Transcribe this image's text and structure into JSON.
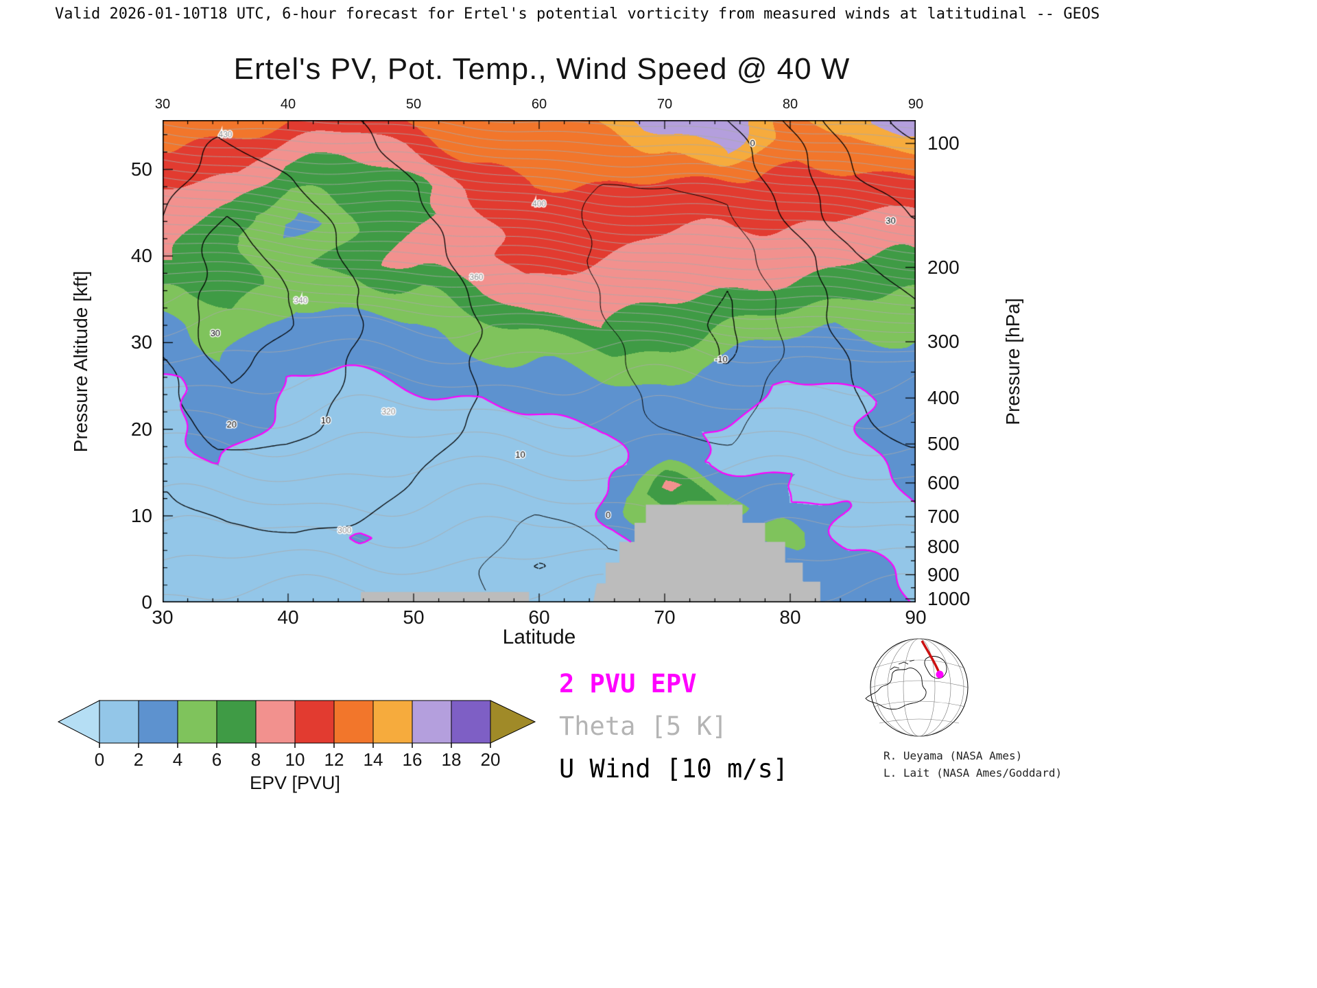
{
  "header": {
    "validity_line": "Valid 2026-01-10T18 UTC, 6-hour forecast for Ertel's potential vorticity from measured winds at latitudinal -- GEOS"
  },
  "title": "Ertel's PV, Pot. Temp., Wind Speed @ 40 W",
  "axes": {
    "x": {
      "label": "Latitude",
      "ticks": [
        30,
        40,
        50,
        60,
        70,
        80,
        90
      ],
      "range": [
        30,
        90
      ],
      "minor_step": 2
    },
    "y_left": {
      "label": "Pressure Altitude [kft]",
      "ticks": [
        0,
        10,
        20,
        30,
        40,
        50
      ],
      "range": [
        0,
        55.7
      ],
      "minor_step": 2
    },
    "y_right": {
      "label": "Pressure [hPa]",
      "ticks": [
        100,
        200,
        300,
        400,
        500,
        600,
        700,
        800,
        900,
        1000
      ],
      "tick_alt_kft": [
        53.0,
        38.7,
        30.1,
        23.6,
        18.3,
        13.8,
        9.9,
        6.4,
        3.2,
        0.4
      ],
      "minor_tick_alt_kft": [
        44.6,
        34.0,
        26.6,
        20.8,
        15.9,
        11.7,
        8.1,
        4.8,
        1.7
      ]
    }
  },
  "legend": {
    "items": [
      {
        "text": "2 PVU EPV",
        "color": "#ff00ff",
        "bold": true
      },
      {
        "text": "Theta [5 K]",
        "color": "#b4b4b4",
        "bold": false
      },
      {
        "text": "U Wind [10 m/s]",
        "color": "#000000",
        "bold": false
      }
    ]
  },
  "colorbar": {
    "label": "EPV [PVU]",
    "levels": [
      0,
      2,
      4,
      6,
      8,
      10,
      12,
      14,
      16,
      18,
      20
    ],
    "under_color": "#b5def4",
    "segment_colors": [
      "#93c6e8",
      "#5d92cf",
      "#7fc35c",
      "#3f9b45",
      "#f2918e",
      "#e23b30",
      "#f2762b",
      "#f6ab3d",
      "#b49fdd",
      "#7e5fc5"
    ],
    "over_color": "#a08a28"
  },
  "credits": {
    "lines": [
      "R. Ueyama (NASA Ames)",
      "L. Lait (NASA Ames/Goddard)"
    ]
  },
  "chart_data": {
    "type": "heatmap",
    "title": "Ertel's PV, Pot. Temp., Wind Speed @ 40 W",
    "x_label": "Latitude",
    "y_label": "Pressure Altitude [kft]",
    "value_label": "EPV [PVU]",
    "lat_range": [
      30,
      90
    ],
    "alt_range": [
      0,
      55.7
    ],
    "lat_points": [
      30,
      35,
      40,
      45,
      50,
      55,
      60,
      65,
      70,
      75,
      80,
      85,
      90
    ],
    "alt_points": [
      0,
      4,
      8,
      12,
      16,
      20,
      24,
      28,
      32,
      36,
      40,
      44,
      48,
      52,
      56
    ],
    "epv_grid": [
      [
        0.6,
        0.7,
        0.5,
        0.6,
        0.8,
        0.7,
        0.6,
        0.8,
        1.0,
        1.0,
        1.2,
        3.5,
        1.4
      ],
      [
        0.8,
        0.9,
        0.6,
        0.7,
        0.9,
        0.8,
        0.7,
        1.0,
        1.2,
        1.2,
        3.0,
        2.8,
        1.6
      ],
      [
        1.0,
        1.2,
        0.8,
        2.3,
        1.0,
        0.9,
        0.8,
        1.2,
        3.5,
        2.0,
        6.0,
        1.6,
        1.9
      ],
      [
        1.1,
        1.6,
        1.0,
        1.0,
        1.2,
        1.0,
        1.0,
        1.5,
        9.0,
        5.0,
        2.0,
        1.8,
        2.1
      ],
      [
        1.3,
        2.2,
        1.2,
        1.2,
        1.4,
        1.2,
        1.2,
        1.8,
        2.5,
        1.7,
        2.0,
        1.6,
        2.4
      ],
      [
        1.5,
        2.6,
        1.5,
        1.5,
        1.6,
        1.5,
        1.6,
        2.0,
        2.2,
        1.9,
        1.6,
        1.7,
        2.7
      ],
      [
        1.7,
        3.0,
        1.8,
        1.8,
        1.9,
        2.0,
        2.5,
        3.0,
        3.2,
        2.8,
        1.8,
        1.8,
        3.0
      ],
      [
        2.6,
        3.5,
        2.2,
        2.2,
        2.4,
        3.2,
        4.5,
        5.5,
        5.0,
        3.5,
        2.6,
        2.4,
        3.4
      ],
      [
        3.2,
        5.0,
        3.0,
        3.0,
        3.5,
        5.5,
        7.5,
        8.0,
        7.0,
        6.0,
        5.0,
        4.0,
        4.5
      ],
      [
        5.5,
        7.0,
        5.0,
        5.5,
        6.0,
        8.0,
        9.5,
        9.0,
        8.5,
        8.0,
        7.5,
        6.5,
        6.0
      ],
      [
        8.0,
        6.5,
        5.5,
        6.5,
        9.5,
        9.5,
        10.5,
        10.0,
        9.5,
        9.0,
        9.0,
        8.5,
        8.0
      ],
      [
        9.0,
        7.5,
        3.0,
        6.0,
        7.0,
        10.0,
        11.0,
        11.0,
        10.5,
        10.0,
        10.0,
        10.0,
        9.5
      ],
      [
        10.0,
        9.0,
        6.0,
        6.5,
        7.5,
        11.0,
        12.0,
        12.0,
        11.5,
        11.0,
        11.5,
        11.0,
        11.0
      ],
      [
        12.0,
        11.0,
        9.0,
        8.5,
        9.5,
        12.0,
        12.5,
        13.0,
        13.0,
        16.0,
        12.5,
        13.0,
        13.5
      ],
      [
        14.0,
        13.0,
        12.5,
        12.0,
        12.5,
        13.5,
        14.0,
        14.5,
        17.0,
        18.0,
        14.0,
        14.5,
        17.0
      ]
    ],
    "u_wind_grid": [
      [
        2,
        3,
        4,
        4,
        3,
        1,
        -3,
        -1,
        0,
        1,
        2,
        3,
        4
      ],
      [
        4,
        6,
        7,
        6,
        5,
        2,
        -11,
        -1,
        0,
        2,
        3,
        4,
        5
      ],
      [
        6,
        9,
        10,
        9,
        7,
        4,
        -4,
        1,
        1,
        3,
        4,
        5,
        6
      ],
      [
        9,
        14,
        14,
        12,
        9,
        6,
        2,
        2,
        2,
        4,
        5,
        6,
        7
      ],
      [
        12,
        18,
        18,
        15,
        11,
        8,
        4,
        3,
        2,
        3,
        6,
        8,
        9
      ],
      [
        15,
        24,
        22,
        17,
        13,
        9,
        5,
        3,
        0,
        -2,
        5,
        9,
        11
      ],
      [
        18,
        28,
        25,
        19,
        14,
        10,
        6,
        3,
        -2,
        -6,
        4,
        10,
        13
      ],
      [
        20,
        32,
        28,
        20,
        15,
        10,
        6,
        2,
        -4,
        -11,
        3,
        11,
        15
      ],
      [
        22,
        35,
        30,
        21,
        15,
        10,
        5,
        1,
        -5,
        -12,
        2,
        13,
        18
      ],
      [
        23,
        36,
        30,
        21,
        14,
        9,
        4,
        0,
        -5,
        -10,
        3,
        16,
        22
      ],
      [
        22,
        34,
        28,
        19,
        13,
        8,
        3,
        -1,
        -4,
        -5,
        6,
        20,
        26
      ],
      [
        20,
        30,
        25,
        17,
        11,
        7,
        2,
        -1,
        -2,
        -2,
        10,
        25,
        30
      ],
      [
        18,
        26,
        21,
        14,
        10,
        6,
        2,
        0,
        0,
        2,
        14,
        29,
        34
      ],
      [
        16,
        22,
        18,
        12,
        8,
        5,
        1,
        0,
        2,
        6,
        18,
        32,
        38
      ],
      [
        14,
        18,
        15,
        10,
        7,
        4,
        1,
        1,
        4,
        10,
        22,
        35,
        42
      ]
    ],
    "u_wind_contour_interval_ms": 10,
    "theta_contour_interval_K": 5,
    "epv_highlight_contour_pvu": 2,
    "mask_color": "#bcbcbc",
    "mask_polygons": [
      [
        [
          64.3,
          0
        ],
        [
          64.6,
          2.2
        ],
        [
          65.3,
          2.2
        ],
        [
          65.3,
          4.6
        ],
        [
          66.4,
          4.6
        ],
        [
          66.4,
          7.0
        ],
        [
          67.6,
          7.0
        ],
        [
          67.6,
          9.2
        ],
        [
          68.5,
          9.2
        ],
        [
          68.5,
          11.3
        ],
        [
          76.2,
          11.3
        ],
        [
          76.2,
          9.2
        ],
        [
          78.0,
          9.2
        ],
        [
          78.0,
          7.0
        ],
        [
          79.6,
          7.0
        ],
        [
          79.6,
          4.6
        ],
        [
          81.0,
          4.6
        ],
        [
          81.0,
          2.4
        ],
        [
          82.4,
          2.4
        ],
        [
          82.4,
          0
        ]
      ],
      [
        [
          45.8,
          0
        ],
        [
          45.8,
          1.2
        ],
        [
          59.2,
          1.2
        ],
        [
          59.2,
          0
        ]
      ]
    ],
    "u_wind_labels": [
      {
        "text": "30",
        "lat": 34.2,
        "alt": 31
      },
      {
        "text": "20",
        "lat": 35.5,
        "alt": 20.5
      },
      {
        "text": "10",
        "lat": 43,
        "alt": 21
      },
      {
        "text": "10",
        "lat": 58.5,
        "alt": 17
      },
      {
        "text": "30",
        "lat": 88,
        "alt": 44
      },
      {
        "text": "0",
        "lat": 77,
        "alt": 53
      },
      {
        "text": "-10",
        "lat": 74.5,
        "alt": 28
      },
      {
        "text": "0",
        "lat": 65.5,
        "alt": 10
      }
    ],
    "theta_labels": [
      {
        "text": "300",
        "lat": 44.5,
        "alt": 8.3
      },
      {
        "text": "320",
        "lat": 48,
        "alt": 22
      },
      {
        "text": "340",
        "lat": 41,
        "alt": 34.8
      },
      {
        "text": "360",
        "lat": 55,
        "alt": 37.5
      },
      {
        "text": "400",
        "lat": 60,
        "alt": 46
      },
      {
        "text": "430",
        "lat": 35,
        "alt": 54
      }
    ]
  }
}
